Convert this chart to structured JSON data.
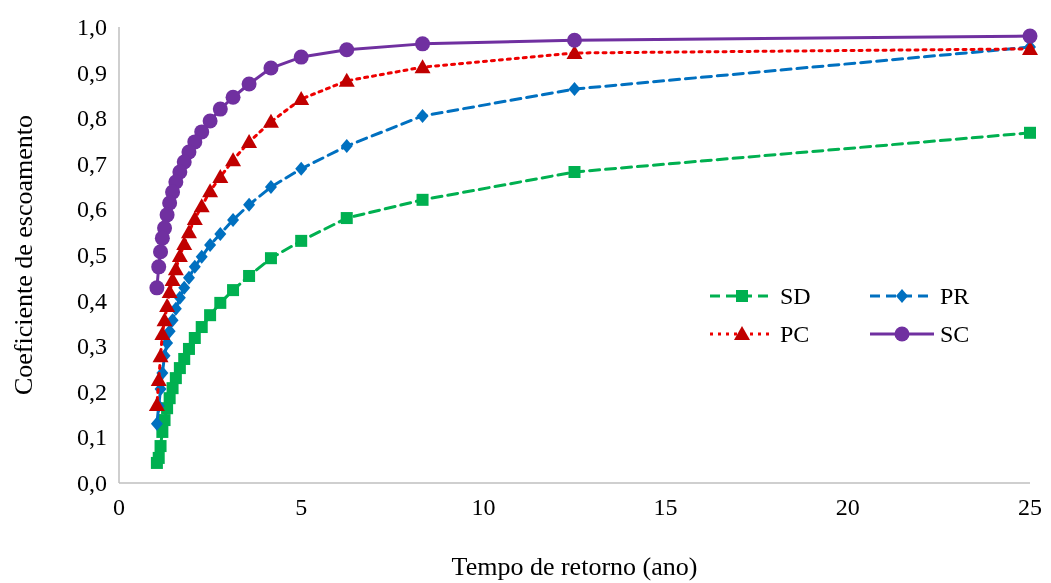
{
  "chart_data": {
    "type": "line",
    "xlabel": "Tempo de retorno (ano)",
    "ylabel": "Coeficiente de escoamento",
    "x": [
      25,
      12.5,
      8.33,
      6.25,
      5,
      4.17,
      3.57,
      3.13,
      2.78,
      2.5,
      2.27,
      2.08,
      1.92,
      1.79,
      1.67,
      1.56,
      1.47,
      1.39,
      1.32,
      1.25,
      1.19,
      1.14,
      1.09,
      1.04
    ],
    "series": [
      {
        "name": "SD",
        "color": "#00b050",
        "marker": "square",
        "line_style": "dashed",
        "values": [
          0.768,
          0.682,
          0.621,
          0.581,
          0.531,
          0.493,
          0.454,
          0.423,
          0.395,
          0.368,
          0.342,
          0.318,
          0.294,
          0.272,
          0.252,
          0.23,
          0.208,
          0.186,
          0.164,
          0.138,
          0.112,
          0.081,
          0.055,
          0.044
        ]
      },
      {
        "name": "PR",
        "color": "#0070c0",
        "marker": "diamond",
        "line_style": "dashed",
        "values": [
          0.956,
          0.864,
          0.805,
          0.739,
          0.689,
          0.649,
          0.61,
          0.577,
          0.546,
          0.522,
          0.496,
          0.474,
          0.45,
          0.428,
          0.406,
          0.382,
          0.357,
          0.333,
          0.307,
          0.279,
          0.241,
          0.206,
          0.169,
          0.13
        ]
      },
      {
        "name": "PC",
        "color": "#c00000",
        "marker": "triangle",
        "line_style": "dotted",
        "values": [
          0.952,
          0.943,
          0.912,
          0.882,
          0.842,
          0.792,
          0.748,
          0.708,
          0.671,
          0.64,
          0.607,
          0.579,
          0.55,
          0.524,
          0.498,
          0.469,
          0.445,
          0.419,
          0.388,
          0.357,
          0.327,
          0.278,
          0.226,
          0.171
        ]
      },
      {
        "name": "SC",
        "color": "#7030a0",
        "marker": "circle",
        "line_style": "solid",
        "values": [
          0.98,
          0.971,
          0.963,
          0.95,
          0.934,
          0.91,
          0.875,
          0.846,
          0.82,
          0.794,
          0.77,
          0.748,
          0.726,
          0.704,
          0.682,
          0.66,
          0.638,
          0.614,
          0.588,
          0.559,
          0.537,
          0.507,
          0.474,
          0.428
        ]
      }
    ],
    "xlim": [
      0,
      25
    ],
    "xticks": [
      0,
      5,
      10,
      15,
      20,
      25
    ],
    "ylim": [
      0,
      1
    ],
    "yticks": [
      {
        "value": 0,
        "label": "0,0"
      },
      {
        "value": 0.1,
        "label": "0,1"
      },
      {
        "value": 0.2,
        "label": "0,2"
      },
      {
        "value": 0.3,
        "label": "0,3"
      },
      {
        "value": 0.4,
        "label": "0,4"
      },
      {
        "value": 0.5,
        "label": "0,5"
      },
      {
        "value": 0.6,
        "label": "0,6"
      },
      {
        "value": 0.7,
        "label": "0,7"
      },
      {
        "value": 0.8,
        "label": "0,8"
      },
      {
        "value": 0.9,
        "label": "0,9"
      },
      {
        "value": 1,
        "label": "1,0"
      }
    ],
    "grid": false,
    "legend": "right"
  }
}
